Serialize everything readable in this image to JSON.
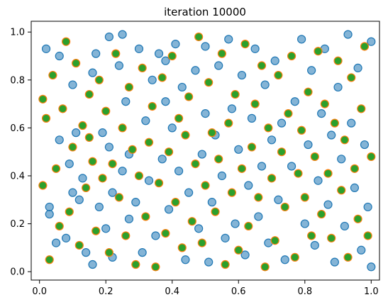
{
  "chart_data": {
    "type": "scatter",
    "title": "iteration 10000",
    "xlabel": "",
    "ylabel": "",
    "xlim": [
      -0.025,
      1.025
    ],
    "ylim": [
      -0.035,
      1.045
    ],
    "x_ticks": [
      0.0,
      0.2,
      0.4,
      0.6,
      0.8,
      1.0
    ],
    "x_tick_labels": [
      "0.0",
      "0.2",
      "0.4",
      "0.6",
      "0.8",
      "1.0"
    ],
    "y_ticks": [
      0.0,
      0.2,
      0.4,
      0.6,
      0.8,
      1.0
    ],
    "y_tick_labels": [
      "0.0",
      "0.2",
      "0.4",
      "0.6",
      "0.8",
      "1.0"
    ],
    "grid": false,
    "legend": null,
    "colors": {
      "series_a_face": "#1f77b4",
      "series_a_edge": "#1f77b4",
      "series_b_face": "#2ca02c",
      "series_b_edge": "#ff7f0e"
    },
    "series": [
      {
        "style": "blue-outline",
        "points": [
          [
            0.02,
            0.93
          ],
          [
            0.03,
            0.24
          ],
          [
            0.03,
            0.27
          ],
          [
            0.05,
            0.12
          ],
          [
            0.06,
            0.55
          ],
          [
            0.06,
            0.9
          ],
          [
            0.08,
            0.14
          ],
          [
            0.09,
            0.45
          ],
          [
            0.1,
            0.33
          ],
          [
            0.1,
            0.78
          ],
          [
            0.11,
            0.58
          ],
          [
            0.12,
            0.3
          ],
          [
            0.13,
            0.39
          ],
          [
            0.14,
            0.08
          ],
          [
            0.16,
            0.03
          ],
          [
            0.16,
            0.83
          ],
          [
            0.17,
            0.91
          ],
          [
            0.18,
            0.27
          ],
          [
            0.19,
            0.58
          ],
          [
            0.2,
            0.18
          ],
          [
            0.21,
            0.98
          ],
          [
            0.21,
            0.52
          ],
          [
            0.22,
            0.33
          ],
          [
            0.22,
            0.06
          ],
          [
            0.24,
            0.86
          ],
          [
            0.25,
            0.42
          ],
          [
            0.25,
            0.99
          ],
          [
            0.26,
            0.71
          ],
          [
            0.27,
            0.22
          ],
          [
            0.27,
            0.49
          ],
          [
            0.29,
            0.29
          ],
          [
            0.3,
            0.93
          ],
          [
            0.31,
            0.08
          ],
          [
            0.32,
            0.63
          ],
          [
            0.33,
            0.38
          ],
          [
            0.34,
            0.8
          ],
          [
            0.35,
            0.15
          ],
          [
            0.36,
            0.91
          ],
          [
            0.37,
            0.47
          ],
          [
            0.38,
            0.71
          ],
          [
            0.38,
            0.88
          ],
          [
            0.39,
            0.26
          ],
          [
            0.4,
            0.6
          ],
          [
            0.41,
            0.95
          ],
          [
            0.42,
            0.42
          ],
          [
            0.43,
            0.77
          ],
          [
            0.44,
            0.05
          ],
          [
            0.45,
            0.33
          ],
          [
            0.47,
            0.84
          ],
          [
            0.48,
            0.18
          ],
          [
            0.49,
            0.49
          ],
          [
            0.5,
            0.66
          ],
          [
            0.5,
            0.94
          ],
          [
            0.51,
            0.04
          ],
          [
            0.52,
            0.29
          ],
          [
            0.53,
            0.57
          ],
          [
            0.54,
            0.86
          ],
          [
            0.55,
            0.4
          ],
          [
            0.56,
            0.14
          ],
          [
            0.57,
            0.97
          ],
          [
            0.58,
            0.68
          ],
          [
            0.59,
            0.2
          ],
          [
            0.6,
            0.51
          ],
          [
            0.61,
            0.82
          ],
          [
            0.62,
            0.07
          ],
          [
            0.63,
            0.36
          ],
          [
            0.64,
            0.64
          ],
          [
            0.65,
            0.93
          ],
          [
            0.66,
            0.23
          ],
          [
            0.67,
            0.44
          ],
          [
            0.68,
            0.78
          ],
          [
            0.69,
            0.12
          ],
          [
            0.7,
            0.55
          ],
          [
            0.71,
            0.88
          ],
          [
            0.72,
            0.3
          ],
          [
            0.73,
            0.62
          ],
          [
            0.74,
            0.05
          ],
          [
            0.76,
            0.44
          ],
          [
            0.77,
            0.71
          ],
          [
            0.79,
            0.97
          ],
          [
            0.8,
            0.2
          ],
          [
            0.81,
            0.53
          ],
          [
            0.82,
            0.84
          ],
          [
            0.83,
            0.11
          ],
          [
            0.84,
            0.38
          ],
          [
            0.85,
            0.66
          ],
          [
            0.86,
            0.93
          ],
          [
            0.87,
            0.28
          ],
          [
            0.88,
            0.57
          ],
          [
            0.89,
            0.04
          ],
          [
            0.9,
            0.77
          ],
          [
            0.91,
            0.47
          ],
          [
            0.92,
            0.19
          ],
          [
            0.93,
            0.99
          ],
          [
            0.94,
            0.62
          ],
          [
            0.95,
            0.35
          ],
          [
            0.96,
            0.85
          ],
          [
            0.97,
            0.09
          ],
          [
            0.98,
            0.53
          ],
          [
            0.99,
            0.27
          ],
          [
            1.0,
            0.96
          ],
          [
            1.0,
            0.02
          ]
        ]
      },
      {
        "style": "green-fill-orange-edge",
        "points": [
          [
            0.01,
            0.36
          ],
          [
            0.02,
            0.64
          ],
          [
            0.03,
            0.05
          ],
          [
            0.04,
            0.82
          ],
          [
            0.05,
            0.43
          ],
          [
            0.06,
            0.19
          ],
          [
            0.07,
            0.68
          ],
          [
            0.08,
            0.96
          ],
          [
            0.09,
            0.25
          ],
          [
            0.1,
            0.52
          ],
          [
            0.11,
            0.87
          ],
          [
            0.12,
            0.11
          ],
          [
            0.13,
            0.61
          ],
          [
            0.14,
            0.35
          ],
          [
            0.15,
            0.74
          ],
          [
            0.16,
            0.46
          ],
          [
            0.17,
            0.17
          ],
          [
            0.18,
            0.8
          ],
          [
            0.19,
            0.39
          ],
          [
            0.2,
            0.67
          ],
          [
            0.21,
            0.08
          ],
          [
            0.22,
            0.45
          ],
          [
            0.23,
            0.91
          ],
          [
            0.24,
            0.31
          ],
          [
            0.25,
            0.6
          ],
          [
            0.26,
            0.15
          ],
          [
            0.27,
            0.77
          ],
          [
            0.28,
            0.51
          ],
          [
            0.29,
            0.03
          ],
          [
            0.3,
            0.4
          ],
          [
            0.31,
            0.85
          ],
          [
            0.32,
            0.23
          ],
          [
            0.33,
            0.54
          ],
          [
            0.34,
            0.69
          ],
          [
            0.35,
            0.02
          ],
          [
            0.36,
            0.37
          ],
          [
            0.37,
            0.81
          ],
          [
            0.38,
            0.16
          ],
          [
            0.39,
            0.5
          ],
          [
            0.4,
            0.9
          ],
          [
            0.41,
            0.29
          ],
          [
            0.42,
            0.64
          ],
          [
            0.43,
            0.1
          ],
          [
            0.44,
            0.57
          ],
          [
            0.45,
            0.73
          ],
          [
            0.46,
            0.21
          ],
          [
            0.47,
            0.45
          ],
          [
            0.48,
            0.98
          ],
          [
            0.49,
            0.12
          ],
          [
            0.5,
            0.36
          ],
          [
            0.51,
            0.79
          ],
          [
            0.52,
            0.58
          ],
          [
            0.53,
            0.25
          ],
          [
            0.54,
            0.47
          ],
          [
            0.55,
            0.91
          ],
          [
            0.56,
            0.03
          ],
          [
            0.57,
            0.62
          ],
          [
            0.58,
            0.33
          ],
          [
            0.59,
            0.74
          ],
          [
            0.6,
            0.09
          ],
          [
            0.61,
            0.43
          ],
          [
            0.62,
            0.95
          ],
          [
            0.63,
            0.19
          ],
          [
            0.64,
            0.52
          ],
          [
            0.65,
            0.7
          ],
          [
            0.66,
            0.31
          ],
          [
            0.67,
            0.86
          ],
          [
            0.68,
            0.02
          ],
          [
            0.69,
            0.6
          ],
          [
            0.7,
            0.39
          ],
          [
            0.71,
            0.13
          ],
          [
            0.72,
            0.82
          ],
          [
            0.73,
            0.5
          ],
          [
            0.74,
            0.27
          ],
          [
            0.75,
            0.66
          ],
          [
            0.76,
            0.9
          ],
          [
            0.77,
            0.06
          ],
          [
            0.78,
            0.41
          ],
          [
            0.79,
            0.59
          ],
          [
            0.8,
            0.31
          ],
          [
            0.81,
            0.75
          ],
          [
            0.82,
            0.15
          ],
          [
            0.83,
            0.48
          ],
          [
            0.84,
            0.92
          ],
          [
            0.85,
            0.24
          ],
          [
            0.86,
            0.7
          ],
          [
            0.87,
            0.41
          ],
          [
            0.88,
            0.14
          ],
          [
            0.89,
            0.62
          ],
          [
            0.9,
            0.88
          ],
          [
            0.91,
            0.34
          ],
          [
            0.92,
            0.55
          ],
          [
            0.93,
            0.06
          ],
          [
            0.94,
            0.81
          ],
          [
            0.95,
            0.43
          ],
          [
            0.96,
            0.22
          ],
          [
            0.97,
            0.68
          ],
          [
            0.98,
            0.94
          ],
          [
            0.99,
            0.15
          ],
          [
            1.0,
            0.48
          ],
          [
            0.01,
            0.72
          ],
          [
            0.15,
            0.56
          ]
        ]
      }
    ]
  }
}
